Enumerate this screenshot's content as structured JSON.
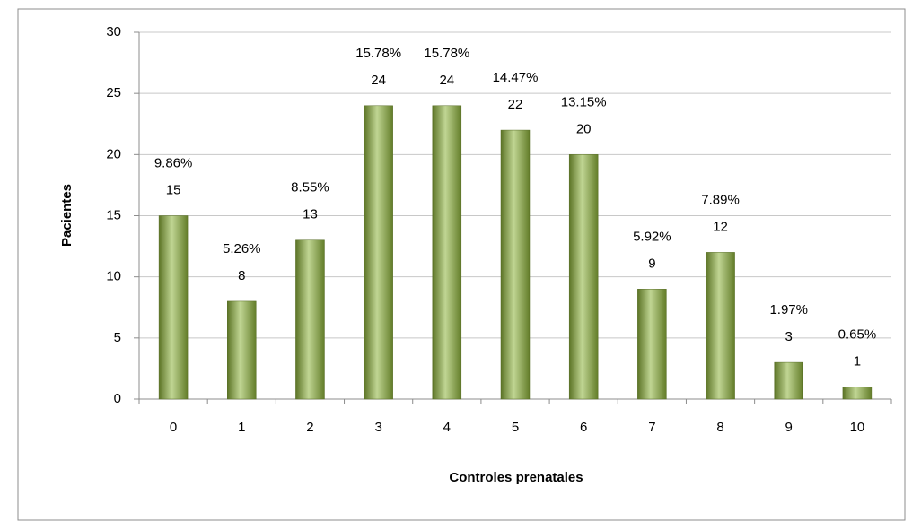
{
  "chart_data": {
    "type": "bar",
    "x_label": "Controles prenatales",
    "y_label": "Pacientes",
    "categories": [
      "0",
      "1",
      "2",
      "3",
      "4",
      "5",
      "6",
      "7",
      "8",
      "9",
      "10"
    ],
    "values": [
      15,
      8,
      13,
      24,
      24,
      22,
      20,
      9,
      12,
      3,
      1
    ],
    "annotations": [
      "9.86%",
      "5.26%",
      "8.55%",
      "15.78%",
      "15.78%",
      "14.47%",
      "13.15%",
      "5.92%",
      "7.89%",
      "1.97%",
      "0.65%"
    ],
    "color": "#8db33a",
    "ylim": [
      0,
      30
    ],
    "yticks": [
      0,
      5,
      10,
      15,
      20,
      25,
      30
    ],
    "grid": true
  }
}
